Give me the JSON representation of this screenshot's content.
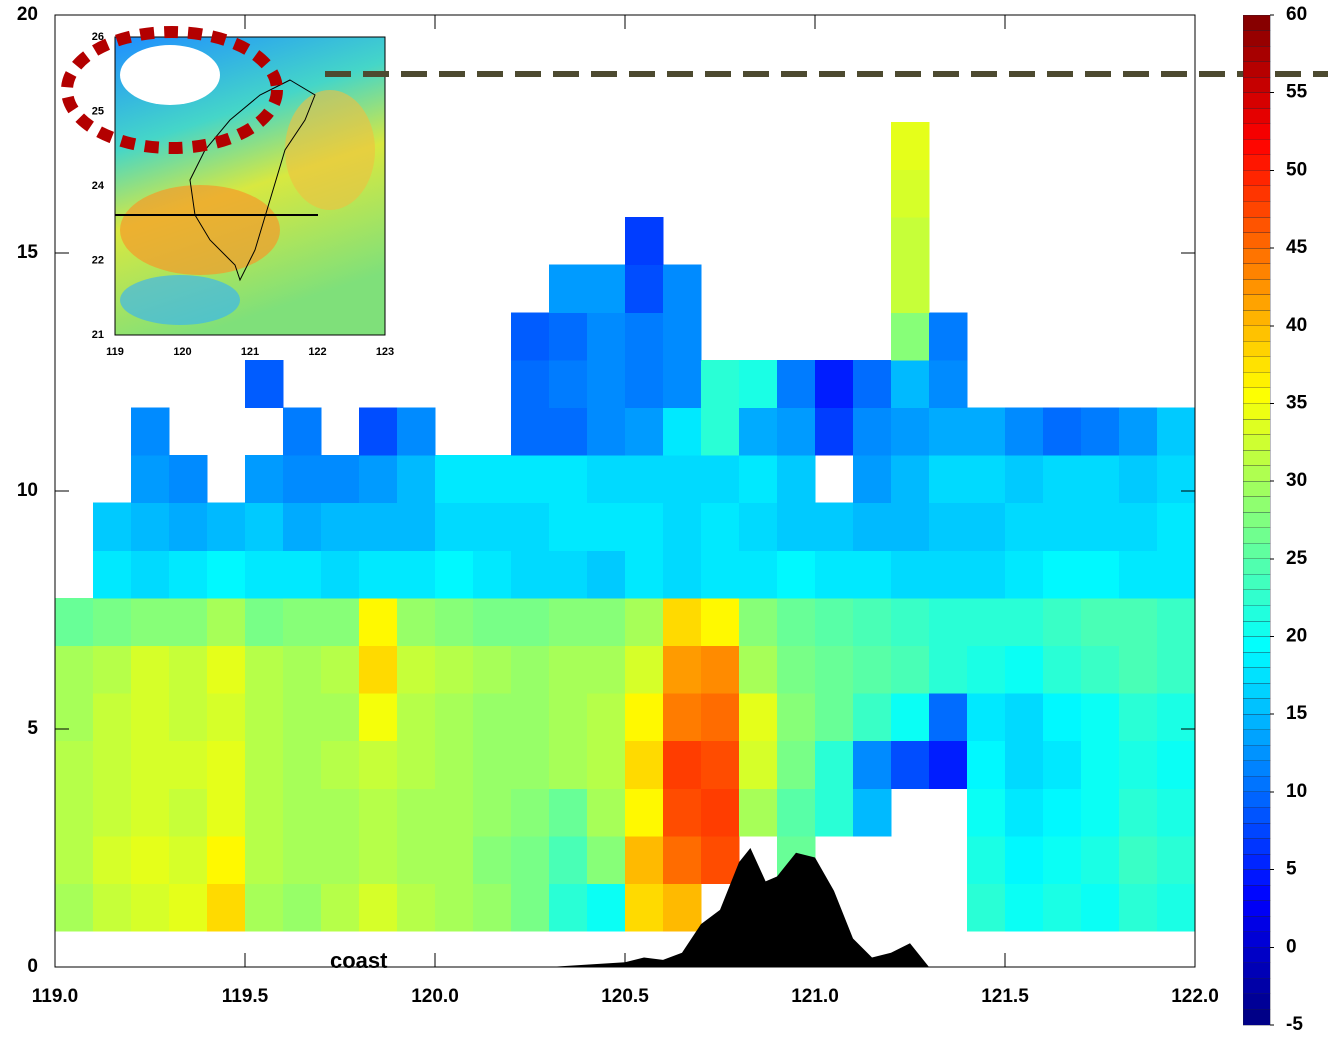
{
  "chart_data": {
    "type": "heatmap",
    "x_bins": [
      119.0,
      119.1,
      119.2,
      119.3,
      119.4,
      119.5,
      119.6,
      119.7,
      119.8,
      119.9,
      120.0,
      120.1,
      120.2,
      120.3,
      120.4,
      120.5,
      120.6,
      120.7,
      120.8,
      120.9,
      121.0,
      121.1,
      121.2,
      121.3,
      121.4,
      121.5,
      121.6,
      121.7,
      121.8,
      121.9,
      122.0
    ],
    "y_bins": [
      0.75,
      1.75,
      2.75,
      3.75,
      4.75,
      5.75,
      6.75,
      7.75,
      8.75,
      9.75,
      10.75,
      11.75,
      12.75,
      13.75,
      14.75,
      15.75,
      16.75,
      17.75
    ],
    "z": [
      [
        30,
        32,
        33,
        34,
        38,
        30,
        29,
        31,
        33,
        31,
        30,
        29,
        27,
        22,
        20,
        38,
        40,
        null,
        null,
        null,
        null,
        null,
        null,
        null,
        22,
        20,
        21,
        20,
        22,
        21
      ],
      [
        31,
        33,
        34,
        33,
        36,
        31,
        30,
        30,
        31,
        30,
        30,
        28,
        27,
        24,
        28,
        40,
        45,
        47,
        null,
        26,
        null,
        null,
        null,
        null,
        21,
        19,
        20,
        21,
        23,
        22
      ],
      [
        31,
        32,
        33,
        32,
        34,
        31,
        30,
        30,
        31,
        30,
        30,
        29,
        28,
        26,
        30,
        36,
        47,
        48,
        30,
        25,
        22,
        15,
        null,
        null,
        20,
        18,
        19,
        20,
        22,
        21
      ],
      [
        31,
        32,
        33,
        33,
        34,
        31,
        30,
        31,
        32,
        31,
        30,
        29,
        29,
        30,
        31,
        38,
        48,
        47,
        33,
        27,
        22,
        12,
        8,
        5,
        19,
        17,
        18,
        20,
        21,
        20
      ],
      [
        30,
        32,
        33,
        32,
        33,
        31,
        30,
        30,
        35,
        31,
        30,
        29,
        29,
        30,
        31,
        36,
        44,
        45,
        34,
        28,
        26,
        23,
        20,
        10,
        18,
        17,
        19,
        20,
        22,
        21
      ],
      [
        30,
        31,
        33,
        32,
        34,
        31,
        30,
        31,
        38,
        32,
        31,
        30,
        29,
        30,
        30,
        33,
        42,
        43,
        30,
        27,
        26,
        25,
        24,
        22,
        21,
        20,
        22,
        23,
        24,
        23
      ],
      [
        26,
        27,
        28,
        28,
        30,
        27,
        28,
        28,
        36,
        29,
        28,
        27,
        27,
        28,
        28,
        30,
        38,
        36,
        28,
        26,
        25,
        24,
        23,
        22,
        22,
        22,
        23,
        24,
        24,
        23
      ],
      [
        null,
        18,
        17,
        18,
        19,
        18,
        18,
        17,
        18,
        18,
        19,
        18,
        17,
        17,
        16,
        18,
        17,
        18,
        18,
        19,
        18,
        18,
        17,
        17,
        17,
        18,
        19,
        19,
        18,
        18
      ],
      [
        null,
        16,
        15,
        14,
        15,
        16,
        14,
        15,
        15,
        15,
        17,
        17,
        17,
        18,
        18,
        18,
        17,
        18,
        17,
        16,
        16,
        15,
        15,
        16,
        16,
        17,
        17,
        17,
        17,
        18
      ],
      [
        null,
        null,
        13,
        12,
        null,
        13,
        12,
        12,
        13,
        15,
        18,
        18,
        18,
        18,
        17,
        17,
        17,
        17,
        18,
        16,
        null,
        13,
        15,
        17,
        17,
        16,
        17,
        17,
        16,
        17
      ],
      [
        null,
        null,
        12,
        null,
        null,
        null,
        11,
        null,
        8,
        12,
        null,
        null,
        10,
        10,
        12,
        13,
        18,
        22,
        14,
        13,
        7,
        12,
        13,
        14,
        14,
        12,
        10,
        11,
        13,
        16
      ],
      [
        null,
        null,
        null,
        null,
        null,
        9,
        null,
        null,
        null,
        null,
        null,
        null,
        10,
        11,
        12,
        11,
        12,
        22,
        21,
        11,
        5,
        10,
        15,
        12,
        null,
        null,
        null,
        null,
        null,
        null
      ],
      [
        null,
        null,
        null,
        null,
        null,
        null,
        null,
        null,
        null,
        null,
        null,
        null,
        9,
        10,
        12,
        11,
        12,
        null,
        null,
        null,
        null,
        null,
        28,
        11,
        null,
        null,
        null,
        null,
        null,
        null
      ],
      [
        null,
        null,
        null,
        null,
        null,
        null,
        null,
        null,
        null,
        null,
        null,
        null,
        null,
        13,
        13,
        8,
        12,
        null,
        null,
        null,
        null,
        null,
        32,
        null,
        null,
        null,
        null,
        null,
        null,
        null
      ],
      [
        null,
        null,
        null,
        null,
        null,
        null,
        null,
        null,
        null,
        null,
        null,
        null,
        null,
        null,
        null,
        7,
        null,
        null,
        null,
        null,
        null,
        null,
        32,
        null,
        null,
        null,
        null,
        null,
        null,
        null
      ],
      [
        null,
        null,
        null,
        null,
        null,
        null,
        null,
        null,
        null,
        null,
        null,
        null,
        null,
        null,
        null,
        null,
        null,
        null,
        null,
        null,
        null,
        null,
        33,
        null,
        null,
        null,
        null,
        null,
        null,
        null
      ],
      [
        null,
        null,
        null,
        null,
        null,
        null,
        null,
        null,
        null,
        null,
        null,
        null,
        null,
        null,
        null,
        null,
        null,
        null,
        null,
        null,
        null,
        null,
        34,
        null,
        null,
        null,
        null,
        null,
        null,
        null
      ]
    ],
    "terrain": {
      "color": "#000000",
      "x": [
        120.3,
        120.4,
        120.5,
        120.55,
        120.6,
        120.65,
        120.7,
        120.75,
        120.8,
        120.83,
        120.87,
        120.9,
        120.95,
        121.0,
        121.05,
        121.1,
        121.15,
        121.2,
        121.25,
        121.3
      ],
      "values": [
        0.0,
        0.05,
        0.1,
        0.2,
        0.15,
        0.3,
        0.9,
        1.2,
        2.2,
        2.5,
        1.8,
        1.9,
        2.4,
        2.3,
        1.6,
        0.6,
        0.2,
        0.3,
        0.5,
        0.0
      ]
    },
    "xlim": [
      119.0,
      122.0
    ],
    "ylim": [
      0,
      20
    ],
    "xticks": [
      {
        "value": 119.0,
        "label": "119.0"
      },
      {
        "value": 119.5,
        "label": "119.5"
      },
      {
        "value": 120.0,
        "label": "120.0"
      },
      {
        "value": 120.5,
        "label": "120.5"
      },
      {
        "value": 121.0,
        "label": "121.0"
      },
      {
        "value": 121.5,
        "label": "121.5"
      },
      {
        "value": 122.0,
        "label": "122.0"
      }
    ],
    "yticks": [
      0,
      5,
      10,
      15,
      20
    ],
    "zlim": [
      -5,
      60
    ],
    "zticks": [
      -5,
      0,
      5,
      10,
      15,
      20,
      25,
      30,
      35,
      40,
      45,
      50,
      55,
      60
    ],
    "colormap": "jet",
    "annotation": "coast"
  },
  "inset": {
    "xticks": [
      "119",
      "120",
      "121",
      "122",
      "123"
    ],
    "yticks": [
      "26",
      "25",
      "24",
      "22",
      "21"
    ]
  }
}
